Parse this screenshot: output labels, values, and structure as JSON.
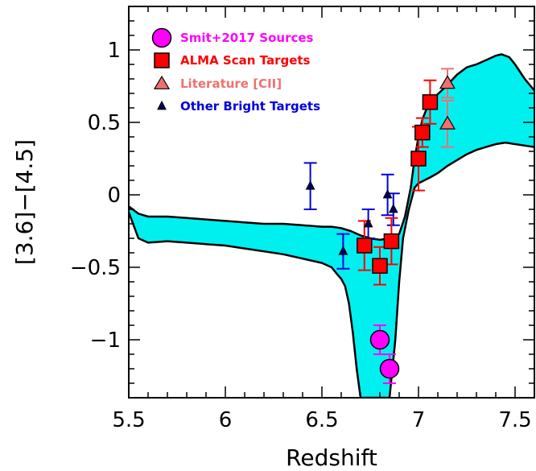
{
  "chart_data": {
    "type": "scatter",
    "title": "",
    "xlabel": "Redshift",
    "ylabel": "[3.6]−[4.5]",
    "xlim": [
      5.5,
      7.6
    ],
    "ylim": [
      -1.4,
      1.3
    ],
    "x_ticks": [
      5.5,
      6,
      6.5,
      7,
      7.5
    ],
    "x_tick_labels": [
      "5.5",
      "6",
      "6.5",
      "7",
      "7.5"
    ],
    "y_ticks": [
      -1,
      -0.5,
      0,
      0.5,
      1
    ],
    "y_tick_labels": [
      "−1",
      "−0.5",
      "0",
      "0.5",
      "1"
    ],
    "grid": false,
    "legend_position": "top-left",
    "band": {
      "color": "#00f0f0",
      "upper": [
        [
          5.5,
          -0.08
        ],
        [
          5.55,
          -0.13
        ],
        [
          5.6,
          -0.15
        ],
        [
          5.7,
          -0.15
        ],
        [
          5.8,
          -0.16
        ],
        [
          5.9,
          -0.17
        ],
        [
          6.0,
          -0.18
        ],
        [
          6.1,
          -0.19
        ],
        [
          6.2,
          -0.2
        ],
        [
          6.3,
          -0.2
        ],
        [
          6.4,
          -0.21
        ],
        [
          6.5,
          -0.22
        ],
        [
          6.55,
          -0.22
        ],
        [
          6.6,
          -0.23
        ],
        [
          6.65,
          -0.25
        ],
        [
          6.7,
          -0.28
        ],
        [
          6.75,
          -0.3
        ],
        [
          6.8,
          -0.31
        ],
        [
          6.85,
          -0.3
        ],
        [
          6.9,
          -0.27
        ],
        [
          6.93,
          -0.15
        ],
        [
          6.96,
          0.05
        ],
        [
          6.98,
          0.25
        ],
        [
          7.0,
          0.4
        ],
        [
          7.02,
          0.52
        ],
        [
          7.05,
          0.62
        ],
        [
          7.08,
          0.67
        ],
        [
          7.12,
          0.72
        ],
        [
          7.15,
          0.76
        ],
        [
          7.2,
          0.83
        ],
        [
          7.25,
          0.88
        ],
        [
          7.3,
          0.9
        ],
        [
          7.35,
          0.93
        ],
        [
          7.4,
          0.96
        ],
        [
          7.43,
          0.97
        ],
        [
          7.47,
          0.95
        ],
        [
          7.5,
          0.9
        ],
        [
          7.55,
          0.8
        ],
        [
          7.6,
          0.72
        ]
      ],
      "lower": [
        [
          5.5,
          -0.12
        ],
        [
          5.55,
          -0.3
        ],
        [
          5.6,
          -0.33
        ],
        [
          5.7,
          -0.32
        ],
        [
          5.8,
          -0.33
        ],
        [
          5.9,
          -0.34
        ],
        [
          6.0,
          -0.35
        ],
        [
          6.1,
          -0.37
        ],
        [
          6.2,
          -0.39
        ],
        [
          6.3,
          -0.41
        ],
        [
          6.4,
          -0.44
        ],
        [
          6.5,
          -0.47
        ],
        [
          6.55,
          -0.5
        ],
        [
          6.58,
          -0.55
        ],
        [
          6.6,
          -0.58
        ],
        [
          6.62,
          -0.63
        ],
        [
          6.64,
          -0.75
        ],
        [
          6.66,
          -0.95
        ],
        [
          6.68,
          -1.2
        ],
        [
          6.7,
          -1.4
        ],
        [
          6.85,
          -1.4
        ],
        [
          6.88,
          -1.0
        ],
        [
          6.9,
          -0.6
        ],
        [
          6.92,
          -0.3
        ],
        [
          6.95,
          -0.1
        ],
        [
          6.98,
          0.05
        ],
        [
          7.0,
          0.08
        ],
        [
          7.03,
          0.1
        ],
        [
          7.06,
          0.12
        ],
        [
          7.1,
          0.15
        ],
        [
          7.15,
          0.2
        ],
        [
          7.2,
          0.24
        ],
        [
          7.25,
          0.28
        ],
        [
          7.3,
          0.31
        ],
        [
          7.35,
          0.33
        ],
        [
          7.4,
          0.35
        ],
        [
          7.45,
          0.36
        ],
        [
          7.5,
          0.35
        ],
        [
          7.55,
          0.34
        ],
        [
          7.6,
          0.33
        ]
      ]
    },
    "series": [
      {
        "name": "Smit+2017 Sources",
        "marker": "circle",
        "color": "#ff00ff",
        "points": [
          {
            "x": 6.8,
            "y": -1.0,
            "yerr": 0.1
          },
          {
            "x": 6.85,
            "y": -1.2,
            "yerr": 0.1
          }
        ]
      },
      {
        "name": "ALMA Scan Targets",
        "marker": "square",
        "color": "#ff0000",
        "points": [
          {
            "x": 6.72,
            "y": -0.35,
            "yerr": 0.17
          },
          {
            "x": 6.8,
            "y": -0.49,
            "yerr": 0.13
          },
          {
            "x": 6.86,
            "y": -0.32,
            "yerr": 0.16
          },
          {
            "x": 7.0,
            "y": 0.25,
            "yerr": 0.22
          },
          {
            "x": 7.02,
            "y": 0.43,
            "yerr": 0.1
          },
          {
            "x": 7.06,
            "y": 0.64,
            "yerr": 0.15
          }
        ]
      },
      {
        "name": "Literature [CII]",
        "marker": "triangle",
        "color": "#f07070",
        "points": [
          {
            "x": 7.15,
            "y": 0.77,
            "yerr": 0.1
          },
          {
            "x": 7.15,
            "y": 0.49,
            "yerr": 0.16
          }
        ]
      },
      {
        "name": "Other Bright Targets",
        "marker": "small-triangle",
        "color": "#0000dd",
        "points": [
          {
            "x": 6.44,
            "y": 0.06,
            "yerr": 0.16
          },
          {
            "x": 6.61,
            "y": -0.39,
            "yerr": 0.12
          },
          {
            "x": 6.74,
            "y": -0.2,
            "yerr": 0.1
          },
          {
            "x": 6.84,
            "y": 0.0,
            "yerr": 0.14
          },
          {
            "x": 6.87,
            "y": -0.1,
            "yerr": 0.11
          }
        ]
      }
    ]
  }
}
